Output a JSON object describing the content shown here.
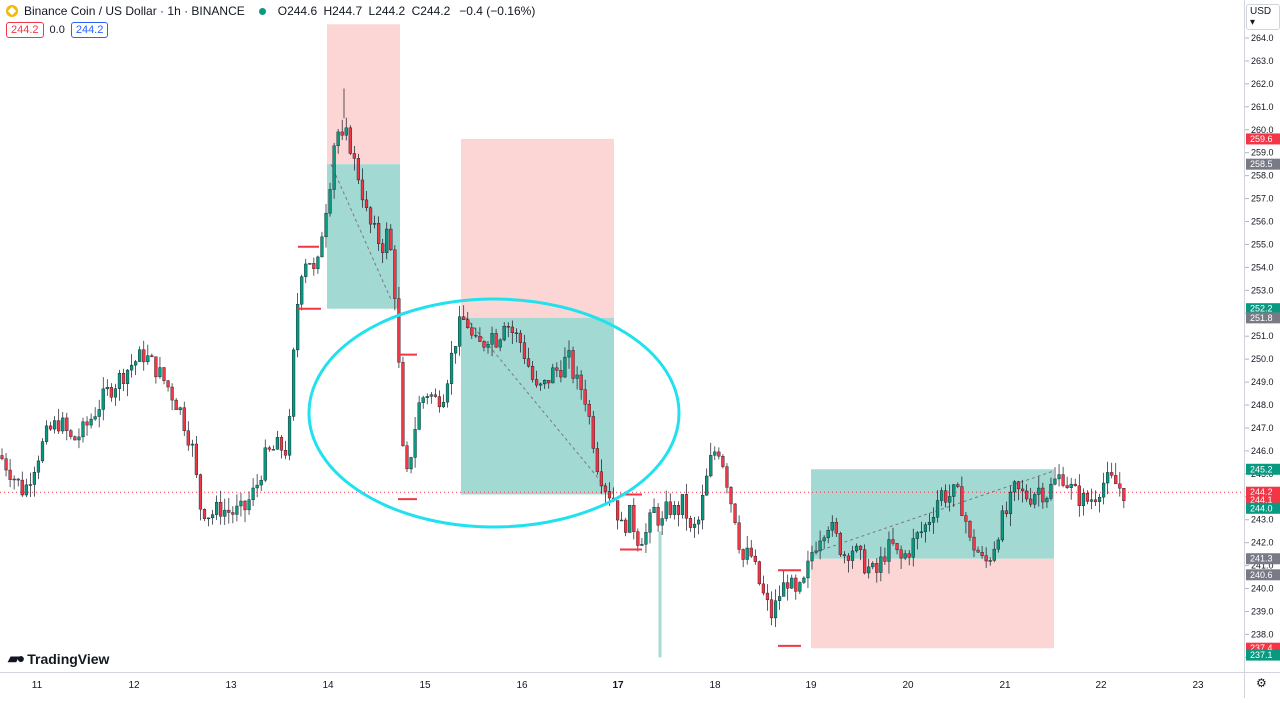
{
  "header": {
    "title": "Binance Coin / US Dollar · 1h · BINANCE",
    "open": "O244.6",
    "high": "H244.7",
    "low": "L244.2",
    "close": "C244.2",
    "change": "−0.4 (−0.16%)",
    "sell_price": "244.2",
    "spread": "0.0",
    "buy_price": "244.2",
    "currency": "USD"
  },
  "brand": "TradingView",
  "icons": [
    "binance-coin-icon",
    "market-status-icon",
    "tradingview-logo-icon",
    "settings-gear-icon"
  ],
  "colors": {
    "up": "#089981",
    "down": "#f23645",
    "ellipse": "#22e1ef",
    "profit_zone": "#7ac9bf",
    "loss_zone": "#f9c8c6"
  },
  "chart_data": {
    "type": "candlestick",
    "symbol": "BNBUSD",
    "interval": "1h",
    "ylim": [
      236.8,
      264.6
    ],
    "x_tick_labels": [
      "11",
      "12",
      "13",
      "14",
      "15",
      "16",
      "17",
      "18",
      "19",
      "20",
      "21",
      "22",
      "23"
    ],
    "y_tick_labels": [
      "264.0",
      "263.0",
      "262.0",
      "261.0",
      "260.0",
      "259.0",
      "258.0",
      "257.0",
      "256.0",
      "255.0",
      "254.0",
      "253.0",
      "252.0",
      "251.0",
      "250.0",
      "249.0",
      "248.0",
      "247.0",
      "246.0",
      "245.0",
      "244.0",
      "243.0",
      "242.0",
      "241.0",
      "240.0",
      "239.0",
      "238.0",
      "237.0"
    ],
    "path": [
      [
        0,
        245.8
      ],
      [
        12,
        245.0
      ],
      [
        24,
        244.2
      ],
      [
        36,
        245.6
      ],
      [
        48,
        246.8
      ],
      [
        60,
        247.3
      ],
      [
        72,
        246.4
      ],
      [
        84,
        246.9
      ],
      [
        96,
        247.8
      ],
      [
        108,
        248.6
      ],
      [
        120,
        249.2
      ],
      [
        132,
        249.8
      ],
      [
        144,
        250.2
      ],
      [
        156,
        249.6
      ],
      [
        168,
        248.8
      ],
      [
        180,
        247.8
      ],
      [
        192,
        246.2
      ],
      [
        200,
        243.6
      ],
      [
        210,
        243.2
      ],
      [
        220,
        243.5
      ],
      [
        232,
        243.3
      ],
      [
        244,
        243.4
      ],
      [
        256,
        244.4
      ],
      [
        266,
        245.8
      ],
      [
        278,
        246.2
      ],
      [
        288,
        246.0
      ],
      [
        294,
        250.4
      ],
      [
        300,
        253.8
      ],
      [
        308,
        254.6
      ],
      [
        316,
        253.4
      ],
      [
        322,
        255.6
      ],
      [
        330,
        257.8
      ],
      [
        336,
        260.2
      ],
      [
        342,
        259.4
      ],
      [
        348,
        259.8
      ],
      [
        354,
        258.6
      ],
      [
        360,
        257.8
      ],
      [
        368,
        256.0
      ],
      [
        376,
        255.4
      ],
      [
        382,
        254.9
      ],
      [
        388,
        255.6
      ],
      [
        394,
        253.6
      ],
      [
        398,
        250.6
      ],
      [
        402,
        246.3
      ],
      [
        406,
        244.6
      ],
      [
        412,
        246.2
      ],
      [
        418,
        247.9
      ],
      [
        426,
        248.6
      ],
      [
        436,
        248.2
      ],
      [
        444,
        248.6
      ],
      [
        452,
        250.2
      ],
      [
        458,
        251.3
      ],
      [
        466,
        251.8
      ],
      [
        474,
        250.6
      ],
      [
        482,
        250.6
      ],
      [
        490,
        251.2
      ],
      [
        498,
        250.8
      ],
      [
        504,
        251.8
      ],
      [
        512,
        251.2
      ],
      [
        520,
        250.8
      ],
      [
        528,
        249.8
      ],
      [
        536,
        248.6
      ],
      [
        544,
        248.8
      ],
      [
        552,
        249.4
      ],
      [
        560,
        249.6
      ],
      [
        568,
        250.1
      ],
      [
        576,
        249.0
      ],
      [
        584,
        248.6
      ],
      [
        592,
        246.8
      ],
      [
        598,
        245.3
      ],
      [
        606,
        244.4
      ],
      [
        614,
        243.9
      ],
      [
        622,
        242.6
      ],
      [
        630,
        243.2
      ],
      [
        638,
        242.2
      ],
      [
        646,
        242.4
      ],
      [
        654,
        243.4
      ],
      [
        662,
        242.8
      ],
      [
        668,
        243.6
      ],
      [
        676,
        243.3
      ],
      [
        684,
        243.8
      ],
      [
        690,
        242.4
      ],
      [
        698,
        242.8
      ],
      [
        706,
        244.6
      ],
      [
        712,
        245.8
      ],
      [
        718,
        246.2
      ],
      [
        724,
        245.4
      ],
      [
        730,
        244.0
      ],
      [
        736,
        243.0
      ],
      [
        742,
        241.2
      ],
      [
        750,
        241.6
      ],
      [
        758,
        240.4
      ],
      [
        764,
        239.6
      ],
      [
        772,
        238.8
      ],
      [
        780,
        239.8
      ],
      [
        788,
        240.4
      ],
      [
        796,
        239.6
      ],
      [
        804,
        240.2
      ],
      [
        812,
        241.6
      ],
      [
        820,
        242.4
      ],
      [
        828,
        242.9
      ],
      [
        836,
        242.2
      ],
      [
        844,
        241.5
      ],
      [
        852,
        241.8
      ],
      [
        860,
        241.3
      ],
      [
        868,
        240.9
      ],
      [
        876,
        240.6
      ],
      [
        884,
        241.5
      ],
      [
        892,
        241.9
      ],
      [
        900,
        241.2
      ],
      [
        908,
        241.6
      ],
      [
        916,
        242.2
      ],
      [
        924,
        242.6
      ],
      [
        932,
        243.3
      ],
      [
        940,
        244.2
      ],
      [
        948,
        244.0
      ],
      [
        956,
        244.2
      ],
      [
        964,
        243.4
      ],
      [
        970,
        242.0
      ],
      [
        976,
        241.8
      ],
      [
        984,
        241.0
      ],
      [
        992,
        241.6
      ],
      [
        1000,
        242.8
      ],
      [
        1008,
        243.4
      ],
      [
        1014,
        244.3
      ],
      [
        1022,
        244.1
      ],
      [
        1030,
        244.0
      ],
      [
        1038,
        244.4
      ],
      [
        1046,
        244.1
      ],
      [
        1054,
        244.6
      ],
      [
        1062,
        245.0
      ],
      [
        1070,
        244.4
      ],
      [
        1078,
        244.0
      ],
      [
        1086,
        243.8
      ],
      [
        1094,
        244.0
      ],
      [
        1102,
        244.6
      ],
      [
        1110,
        244.7
      ],
      [
        1118,
        244.5
      ],
      [
        1124,
        244.2
      ]
    ]
  }
}
